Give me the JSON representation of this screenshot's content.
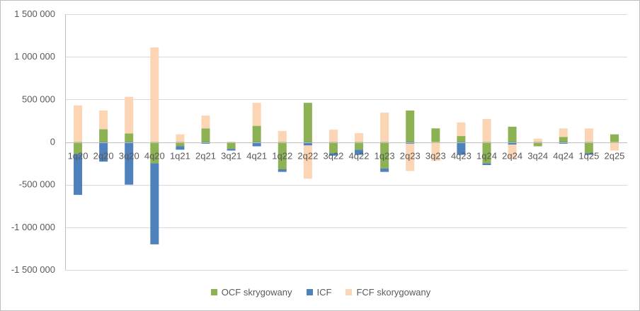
{
  "chart_data": {
    "type": "bar",
    "stacked": true,
    "categories": [
      "1q20",
      "2q20",
      "3q20",
      "4q20",
      "1q21",
      "2q21",
      "3q21",
      "4q21",
      "1q22",
      "2q22",
      "3q22",
      "4q22",
      "1q23",
      "2q23",
      "3q23",
      "4q23",
      "1q24",
      "2q24",
      "3q24",
      "4q24",
      "1q25",
      "2q25"
    ],
    "series": [
      {
        "name": "OCF skrygowany",
        "color": "#8db254",
        "values": [
          -140000,
          150000,
          100000,
          -250000,
          -50000,
          160000,
          -80000,
          190000,
          -320000,
          460000,
          -130000,
          -90000,
          -310000,
          370000,
          160000,
          70000,
          -250000,
          180000,
          -50000,
          60000,
          -130000,
          90000
        ]
      },
      {
        "name": "ICF",
        "color": "#4f81bd",
        "values": [
          -480000,
          -230000,
          -500000,
          -950000,
          -40000,
          -20000,
          -20000,
          -50000,
          -30000,
          -40000,
          -30000,
          -60000,
          -40000,
          -20000,
          0,
          -150000,
          -20000,
          -30000,
          0,
          -20000,
          -20000,
          0
        ]
      },
      {
        "name": "FCF skorygowany",
        "color": "#fcd5b5",
        "values": [
          430000,
          220000,
          430000,
          1110000,
          90000,
          150000,
          0,
          270000,
          130000,
          -390000,
          145000,
          105000,
          345000,
          -320000,
          -220000,
          160000,
          270000,
          -160000,
          40000,
          100000,
          160000,
          -100000
        ]
      }
    ],
    "ylim": [
      -1500000,
      1500000
    ],
    "yticks": [
      1500000,
      1000000,
      500000,
      0,
      -500000,
      -1000000,
      -1500000
    ],
    "ytick_labels": [
      "1 500 000",
      "1 000 000",
      "500 000",
      "0",
      "-500 000",
      "-1 000 000",
      "-1 500 000"
    ],
    "grid": true,
    "legend_position": "bottom",
    "title": "",
    "xlabel": "",
    "ylabel": ""
  }
}
